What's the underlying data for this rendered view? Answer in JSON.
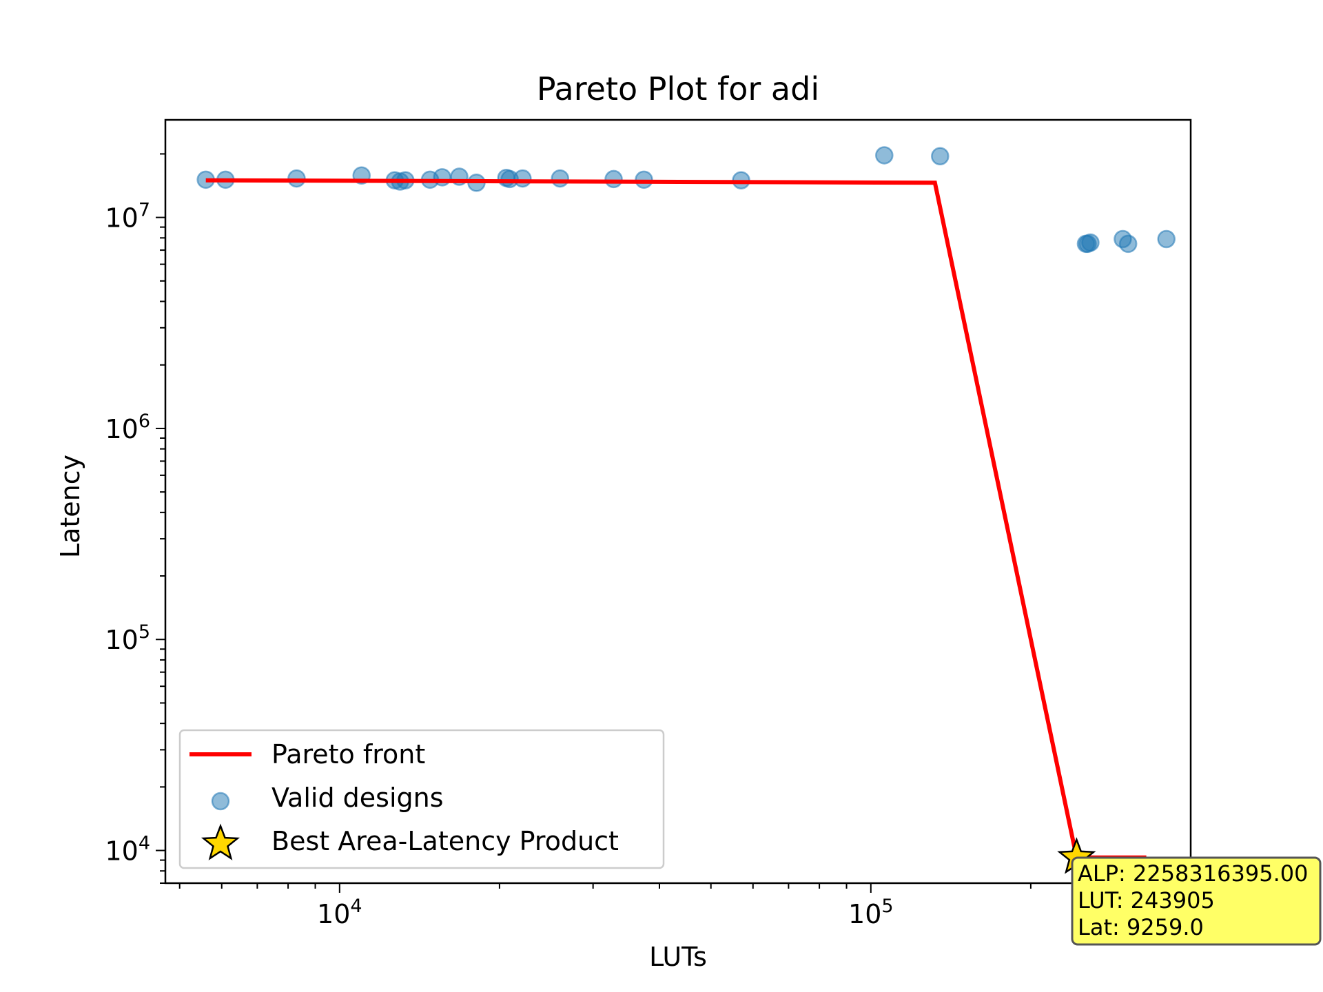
{
  "chart_data": {
    "type": "scatter",
    "title": "Pareto Plot for adi",
    "xlabel": "LUTs",
    "ylabel": "Latency",
    "xscale": "log",
    "yscale": "log",
    "xlim": [
      4700,
      400000
    ],
    "ylim": [
      7000,
      29000000
    ],
    "x_ticks": [
      {
        "value": 10000,
        "base": "10",
        "exp": "4"
      },
      {
        "value": 100000,
        "base": "10",
        "exp": "5"
      }
    ],
    "y_ticks": [
      {
        "value": 10000,
        "base": "10",
        "exp": "4"
      },
      {
        "value": 100000,
        "base": "10",
        "exp": "5"
      },
      {
        "value": 1000000,
        "base": "10",
        "exp": "6"
      },
      {
        "value": 10000000,
        "base": "10",
        "exp": "7"
      }
    ],
    "grid": false,
    "legend_position": "lower-left",
    "series": [
      {
        "name": "Pareto front",
        "kind": "line",
        "color": "#ff0000",
        "points": [
          [
            5600,
            15000000
          ],
          [
            12900,
            14900000
          ],
          [
            132000,
            14600000
          ],
          [
            243905,
            9259
          ],
          [
            330000,
            9259
          ]
        ]
      },
      {
        "name": "Valid designs",
        "kind": "scatter",
        "color": "#1f77b4",
        "points": [
          [
            5600,
            15100000
          ],
          [
            6100,
            15100000
          ],
          [
            8300,
            15300000
          ],
          [
            11000,
            15800000
          ],
          [
            12700,
            15000000
          ],
          [
            13000,
            14800000
          ],
          [
            13300,
            15000000
          ],
          [
            14800,
            15100000
          ],
          [
            15600,
            15500000
          ],
          [
            16800,
            15600000
          ],
          [
            18100,
            14600000
          ],
          [
            20600,
            15400000
          ],
          [
            20900,
            15200000
          ],
          [
            22100,
            15300000
          ],
          [
            26000,
            15300000
          ],
          [
            32800,
            15200000
          ],
          [
            37400,
            15100000
          ],
          [
            57000,
            15000000
          ],
          [
            106000,
            19700000
          ],
          [
            135000,
            19500000
          ],
          [
            254000,
            7500000
          ],
          [
            256000,
            7500000
          ],
          [
            259000,
            7600000
          ],
          [
            298000,
            7900000
          ],
          [
            305000,
            7500000
          ],
          [
            360000,
            7900000
          ]
        ]
      },
      {
        "name": "Best Area-Latency Product",
        "kind": "star",
        "color": "#ffd700",
        "points": [
          [
            243905,
            9259
          ]
        ]
      }
    ],
    "annotation": {
      "lines": [
        "ALP: 2258316395.00",
        "LUT: 243905",
        "Lat: 9259.0"
      ],
      "background": "#ffff66"
    }
  }
}
